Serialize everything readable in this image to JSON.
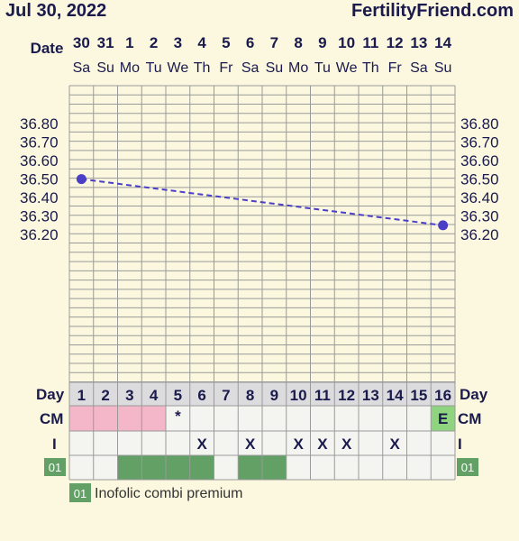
{
  "header": {
    "date": "Jul 30, 2022",
    "site": "FertilityFriend.com"
  },
  "colors": {
    "background": "#fbf8df",
    "grid": "#9a9a9a",
    "line": "#4b3fc8",
    "cm_pink": "#f4b6c9",
    "cm_green": "#8fd47f",
    "med_green": "#62a066",
    "row_bg": "#f4f4f0",
    "dayrow_bg": "#dcdcdf",
    "text": "#1a1a4d"
  },
  "chart_data": {
    "type": "line",
    "date_label": "Date",
    "dates": [
      "30",
      "31",
      "1",
      "2",
      "3",
      "4",
      "5",
      "6",
      "7",
      "8",
      "9",
      "10",
      "11",
      "12",
      "13",
      "14"
    ],
    "weekdays": [
      "Sa",
      "Su",
      "Mo",
      "Tu",
      "We",
      "Th",
      "Fr",
      "Sa",
      "Su",
      "Mo",
      "Tu",
      "We",
      "Th",
      "Fr",
      "Sa",
      "Su"
    ],
    "y_ticks": [
      "36.80",
      "36.70",
      "36.60",
      "36.50",
      "36.40",
      "36.30",
      "36.20"
    ],
    "ylim": [
      36.15,
      36.9
    ],
    "series": [
      {
        "points": [
          {
            "day": 1,
            "value": 36.5
          },
          {
            "day": 16,
            "value": 36.25
          }
        ],
        "style": "dashed"
      }
    ],
    "day_label": "Day",
    "days": [
      "1",
      "2",
      "3",
      "4",
      "5",
      "6",
      "7",
      "8",
      "9",
      "10",
      "11",
      "12",
      "13",
      "14",
      "15",
      "16"
    ],
    "cm_label": "CM",
    "cm": [
      "pink",
      "pink",
      "pink",
      "pink",
      "*",
      "",
      "",
      "",
      "",
      "",
      "",
      "",
      "",
      "",
      "",
      "E"
    ],
    "i_label": "I",
    "intercourse": [
      "",
      "",
      "",
      "",
      "",
      "X",
      "",
      "X",
      "",
      "X",
      "X",
      "X",
      "",
      "X",
      "",
      ""
    ],
    "medication": {
      "code": "01",
      "days": [
        3,
        4,
        5,
        6,
        8,
        9
      ]
    },
    "legend": [
      {
        "code": "01",
        "label": "Inofolic combi premium"
      }
    ]
  }
}
